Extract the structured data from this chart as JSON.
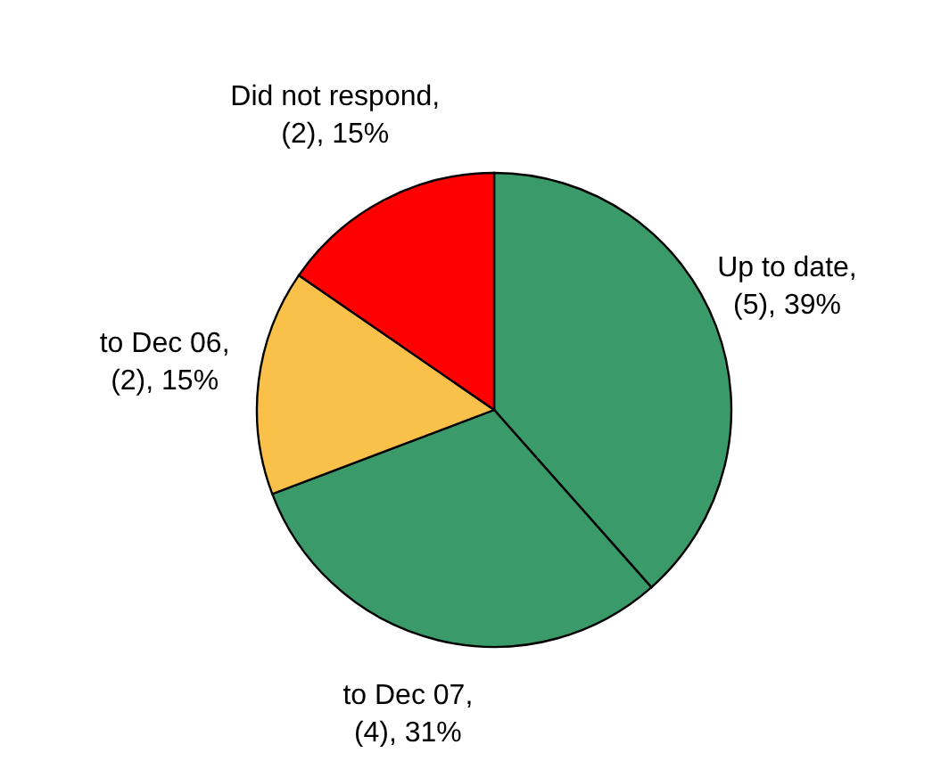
{
  "chart_data": {
    "type": "pie",
    "categories": [
      "Up to date",
      "to Dec 07",
      "to Dec 06",
      "Did not respond"
    ],
    "values": [
      5,
      4,
      2,
      2
    ],
    "value_labels": [
      ",\n(5), 39%",
      ",\n(4), 31%",
      ",\n(2), 15%",
      ",\n(2), 15%"
    ],
    "colors": [
      "#3a9a6a",
      "#3a9a6a",
      "#f9c04a",
      "#ff0000"
    ],
    "legend": false
  }
}
